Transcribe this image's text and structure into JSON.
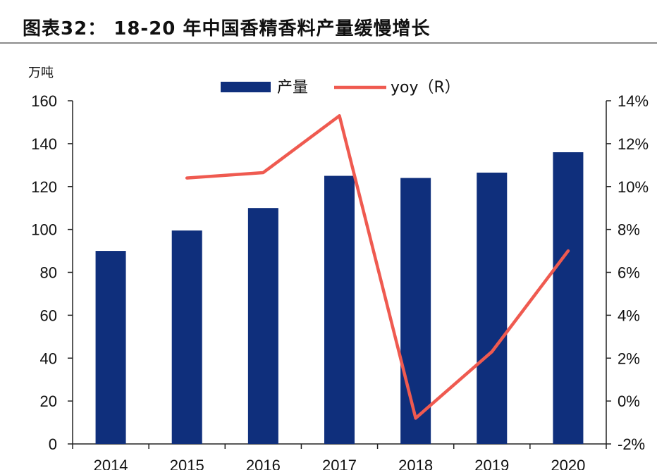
{
  "header": {
    "title": "图表32：  18-20 年中国香精香料产量缓慢增长"
  },
  "chart_data": {
    "type": "bar+line",
    "categories": [
      "2014",
      "2015",
      "2016",
      "2017",
      "2018",
      "2019",
      "2020"
    ],
    "left_axis_unit": "万吨",
    "ylim_left": [
      0,
      160
    ],
    "yticks_left": [
      "0",
      "20",
      "40",
      "60",
      "80",
      "100",
      "120",
      "140",
      "160"
    ],
    "ylim_right": [
      -2,
      14
    ],
    "yticks_right": [
      "-2%",
      "0%",
      "2%",
      "4%",
      "6%",
      "8%",
      "10%",
      "12%",
      "14%"
    ],
    "series": [
      {
        "name": "产量",
        "type": "bar",
        "axis": "left",
        "color": "#0f2f7c",
        "values": [
          90,
          99.5,
          110,
          125,
          124,
          126.5,
          136
        ]
      },
      {
        "name": "yoy（R）",
        "type": "line",
        "axis": "right",
        "color": "#ef5a50",
        "values": [
          null,
          10.4,
          10.65,
          13.3,
          -0.8,
          2.3,
          7.0
        ]
      }
    ],
    "legend_position": "top-center",
    "grid": false
  }
}
